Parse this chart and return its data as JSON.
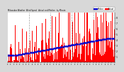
{
  "n_points": 1440,
  "background_color": "#d8d8d8",
  "plot_bg_color": "#ffffff",
  "bar_color": "#ff0000",
  "median_color": "#0000cc",
  "grid_color": "#888888",
  "ylim": [
    0,
    9
  ],
  "yticks_right": [
    1,
    2,
    3,
    4,
    5,
    6,
    7,
    8
  ],
  "n_vgrid": 4,
  "legend_actual_color": "#ff0000",
  "legend_median_color": "#0000cc",
  "seed": 7
}
